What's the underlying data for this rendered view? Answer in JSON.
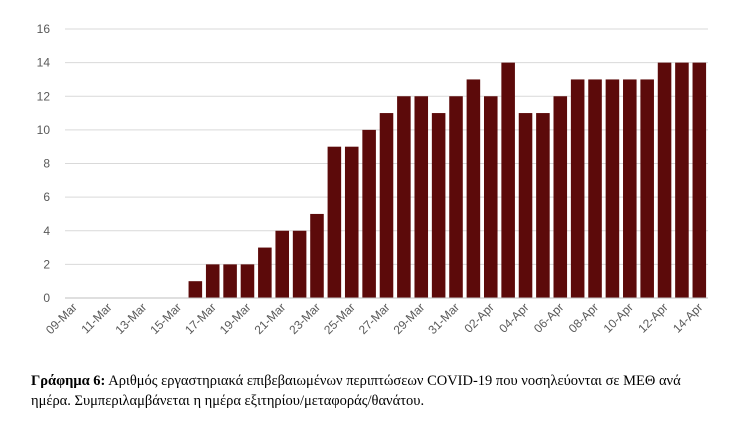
{
  "chart_data": {
    "type": "bar",
    "title": "",
    "xlabel": "",
    "ylabel": "",
    "ylim": [
      0,
      16
    ],
    "yticks": [
      0,
      2,
      4,
      6,
      8,
      10,
      12,
      14,
      16
    ],
    "grid": true,
    "legend": "none",
    "categories": [
      "09-Mar",
      "10-Mar",
      "11-Mar",
      "12-Mar",
      "13-Mar",
      "14-Mar",
      "15-Mar",
      "16-Mar",
      "17-Mar",
      "18-Mar",
      "19-Mar",
      "20-Mar",
      "21-Mar",
      "22-Mar",
      "23-Mar",
      "24-Mar",
      "25-Mar",
      "26-Mar",
      "27-Mar",
      "28-Mar",
      "29-Mar",
      "30-Mar",
      "31-Mar",
      "01-Apr",
      "02-Apr",
      "03-Apr",
      "04-Apr",
      "05-Apr",
      "06-Apr",
      "07-Apr",
      "08-Apr",
      "09-Apr",
      "10-Apr",
      "11-Apr",
      "12-Apr",
      "13-Apr",
      "14-Apr"
    ],
    "tick_labels": [
      "09-Mar",
      "11-Mar",
      "13-Mar",
      "15-Mar",
      "17-Mar",
      "19-Mar",
      "21-Mar",
      "23-Mar",
      "25-Mar",
      "27-Mar",
      "29-Mar",
      "31-Mar",
      "02-Apr",
      "04-Apr",
      "06-Apr",
      "08-Apr",
      "10-Apr",
      "12-Apr",
      "14-Apr"
    ],
    "values": [
      0,
      0,
      0,
      0,
      0,
      0,
      0,
      1,
      2,
      2,
      2,
      3,
      4,
      4,
      5,
      9,
      9,
      10,
      11,
      12,
      12,
      11,
      12,
      13,
      12,
      14,
      11,
      11,
      12,
      13,
      13,
      13,
      13,
      13,
      14,
      14,
      14
    ],
    "bar_color": "#5c0a0a",
    "grid_color": "#d9d9d9",
    "axis_color": "#bfbfbf"
  },
  "caption": {
    "label": "Γράφημα 6:",
    "text": "Αριθμός εργαστηριακά επιβεβαιωμένων περιπτώσεων COVID-19 που νοσηλεύονται σε ΜΕΘ ανά ημέρα. Συμπεριλαμβάνεται η ημέρα εξιτηρίου/μεταφοράς/θανάτου."
  }
}
